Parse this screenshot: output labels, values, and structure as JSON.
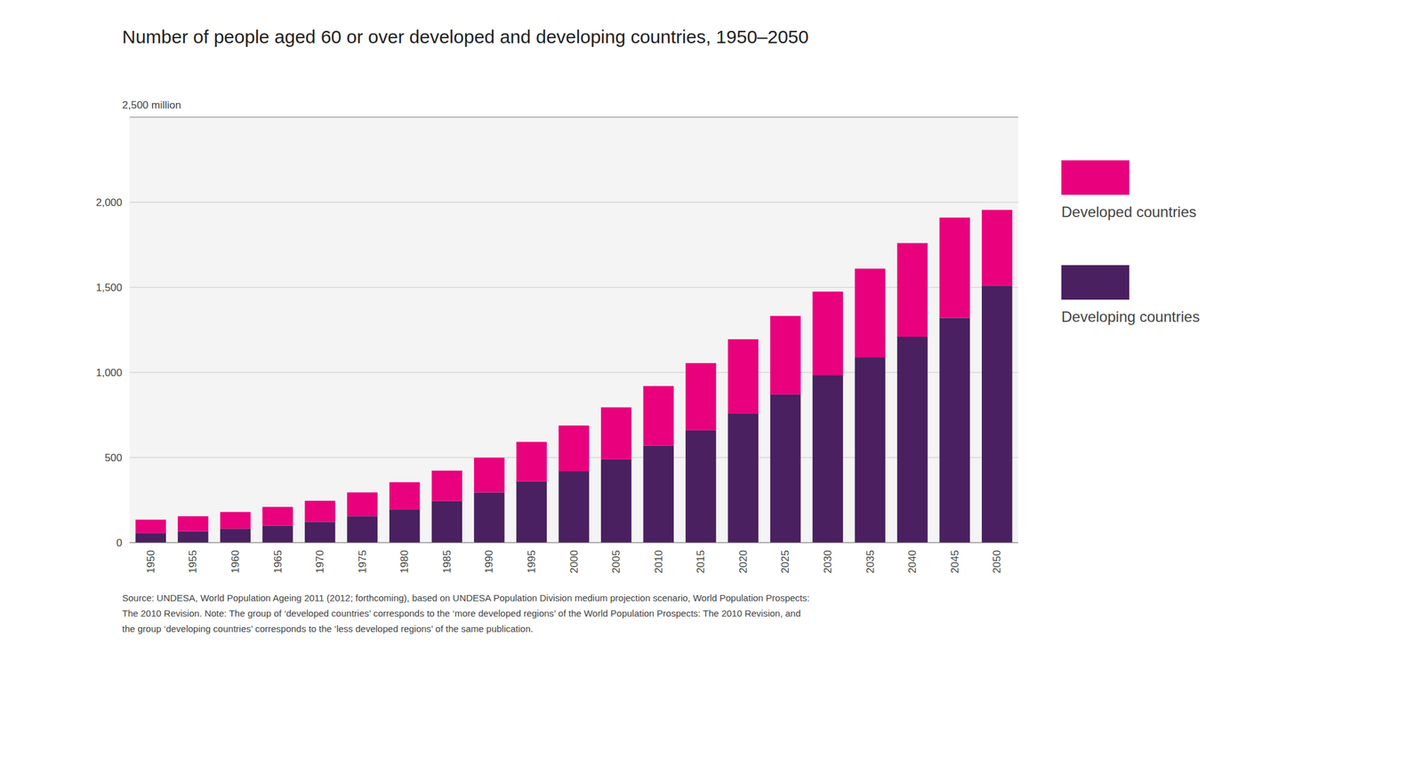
{
  "chart_data": {
    "type": "bar",
    "stacked": true,
    "title": "Number of people aged 60 or over developed and developing countries, 1950–2050",
    "y_label": "2,500 million",
    "source": "Source: UNDESA, World Population Ageing 2011 (2012; forthcoming), based on UNDESA Population Division medium projection scenario, World Population Prospects:\nThe 2010 Revision. Note: The group of ‘developed countries’ corresponds to the ‘more developed regions’ of the World Population Prospects: The 2010 Revision, and\nthe group ‘developing countries’ corresponds to the ‘less developed regions’ of the same publication.",
    "categories": [
      "1950",
      "1955",
      "1960",
      "1965",
      "1970",
      "1975",
      "1980",
      "1985",
      "1990",
      "1995",
      "2000",
      "2005",
      "2010",
      "2015",
      "2020",
      "2025",
      "2030",
      "2035",
      "2040",
      "2045",
      "2050"
    ],
    "series": [
      {
        "name": "Developing countries",
        "color": "#4a2060",
        "values": [
          57,
          67,
          82,
          100,
          122,
          155,
          195,
          245,
          295,
          360,
          420,
          490,
          570,
          660,
          760,
          870,
          985,
          1090,
          1210,
          1320,
          1510
        ]
      },
      {
        "name": "Developed countries",
        "color": "#e8007d",
        "values": [
          78,
          88,
          98,
          110,
          124,
          140,
          160,
          178,
          204,
          232,
          268,
          305,
          350,
          395,
          435,
          462,
          490,
          520,
          550,
          590,
          445
        ]
      }
    ],
    "ylim": [
      0,
      2500
    ],
    "yticks": [
      0,
      500,
      {
        "value": 1000,
        "label": "1,000"
      },
      {
        "value": 1500,
        "label": "1,500"
      },
      {
        "value": 2000,
        "label": "2,000"
      }
    ],
    "grid": true,
    "legend": "right"
  }
}
